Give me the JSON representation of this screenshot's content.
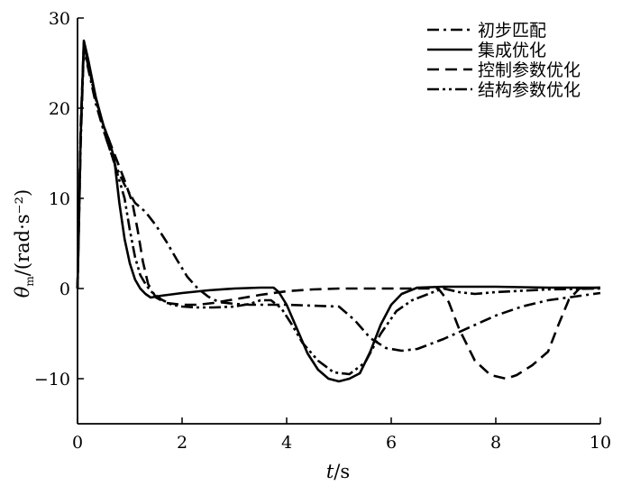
{
  "chart_data": {
    "type": "line",
    "xlabel_var": "t",
    "xlabel_unit": "/s",
    "ylabel_var": "θ",
    "ylabel_sub": "m",
    "ylabel_unit": "/(rad·s⁻²)",
    "xlim": [
      0,
      10
    ],
    "ylim": [
      -15,
      30
    ],
    "xticks": [
      0,
      2,
      4,
      6,
      8,
      10
    ],
    "yticks": [
      -10,
      0,
      10,
      20,
      30
    ],
    "grid": false,
    "legend_position": "top-right",
    "series": [
      {
        "name": "初步匹配",
        "dash": "dashdot",
        "x": [
          0,
          0.06,
          0.12,
          0.2,
          0.35,
          0.5,
          0.7,
          0.9,
          1.1,
          1.3,
          1.5,
          1.7,
          1.9,
          2.1,
          2.3,
          2.5,
          2.7,
          3.0,
          3.3,
          3.6,
          4.0,
          4.5,
          5.0,
          5.3,
          5.6,
          5.9,
          6.2,
          6.5,
          7.0,
          7.5,
          8.0,
          8.5,
          9.0,
          9.5,
          10.0
        ],
        "y": [
          0,
          16,
          26.7,
          24.5,
          20.5,
          17.5,
          14,
          11.5,
          9.5,
          8.5,
          7.0,
          5.2,
          3.2,
          1.3,
          0,
          -0.9,
          -1.5,
          -1.7,
          -1.8,
          -1.8,
          -1.8,
          -1.9,
          -2.0,
          -3.5,
          -5.5,
          -6.6,
          -6.9,
          -6.7,
          -5.6,
          -4.3,
          -3.0,
          -2.0,
          -1.3,
          -0.9,
          -0.5
        ]
      },
      {
        "name": "集成优化",
        "dash": "solid",
        "x": [
          0,
          0.06,
          0.12,
          0.2,
          0.35,
          0.5,
          0.6,
          0.7,
          0.8,
          0.9,
          1.0,
          1.1,
          1.2,
          1.3,
          1.4,
          1.6,
          2.0,
          2.5,
          3.0,
          3.5,
          3.75,
          3.85,
          4.0,
          4.2,
          4.4,
          4.6,
          4.8,
          5.0,
          5.2,
          5.4,
          5.6,
          5.8,
          6.0,
          6.2,
          6.5,
          7.0,
          8.0,
          9.0,
          10.0
        ],
        "y": [
          0,
          17,
          27.5,
          25.5,
          21.2,
          18.0,
          16.5,
          14.5,
          9.5,
          5.5,
          2.8,
          1.0,
          0.0,
          -0.6,
          -1.0,
          -0.8,
          -0.5,
          -0.2,
          0.0,
          0.1,
          0.1,
          -0.4,
          -1.8,
          -4.5,
          -7.2,
          -9.0,
          -10.0,
          -10.3,
          -10.0,
          -9.4,
          -7.0,
          -4.0,
          -1.8,
          -0.6,
          0.1,
          0.2,
          0.2,
          0.1,
          0.1
        ]
      },
      {
        "name": "控制参数优化",
        "dash": "dashed",
        "x": [
          0,
          0.06,
          0.12,
          0.2,
          0.35,
          0.5,
          0.7,
          0.9,
          1.05,
          1.15,
          1.25,
          1.35,
          1.5,
          1.7,
          2.0,
          2.3,
          2.6,
          3.0,
          3.5,
          4.0,
          4.5,
          5.0,
          5.5,
          6.0,
          6.5,
          6.9,
          7.1,
          7.3,
          7.6,
          7.9,
          8.2,
          8.4,
          8.7,
          9.0,
          9.2,
          9.4,
          9.6,
          10.0
        ],
        "y": [
          0,
          18,
          27.2,
          25.0,
          21.0,
          18.0,
          15.0,
          12.0,
          9.5,
          6.5,
          3.0,
          0.5,
          -1.0,
          -1.6,
          -1.8,
          -1.8,
          -1.6,
          -1.2,
          -0.7,
          -0.3,
          -0.1,
          0.0,
          0.0,
          0.0,
          0.0,
          0.0,
          -1.5,
          -4.5,
          -8.0,
          -9.6,
          -10.0,
          -9.6,
          -8.5,
          -7.0,
          -4.0,
          -1.2,
          0.0,
          0.1
        ]
      },
      {
        "name": "结构参数优化",
        "dash": "dashdotdot",
        "x": [
          0,
          0.06,
          0.12,
          0.2,
          0.35,
          0.5,
          0.7,
          0.9,
          1.0,
          1.1,
          1.2,
          1.3,
          1.4,
          1.6,
          1.8,
          2.0,
          2.3,
          2.6,
          3.0,
          3.3,
          3.5,
          3.7,
          3.9,
          4.1,
          4.3,
          4.6,
          4.9,
          5.2,
          5.5,
          5.8,
          6.1,
          6.4,
          6.8,
          7.0,
          7.3,
          7.6,
          8.0,
          9.0,
          10.0
        ],
        "y": [
          0,
          17,
          26.8,
          24.8,
          21.0,
          17.5,
          14.0,
          10.0,
          6.5,
          3.5,
          1.5,
          0.5,
          -0.3,
          -1.2,
          -1.8,
          -2.0,
          -2.1,
          -2.1,
          -2.0,
          -1.7,
          -1.3,
          -1.3,
          -2.2,
          -4.0,
          -6.0,
          -8.0,
          -9.3,
          -9.5,
          -8.2,
          -5.0,
          -2.5,
          -1.3,
          -0.4,
          0.0,
          -0.4,
          -0.6,
          -0.4,
          -0.1,
          0.0
        ]
      }
    ]
  }
}
